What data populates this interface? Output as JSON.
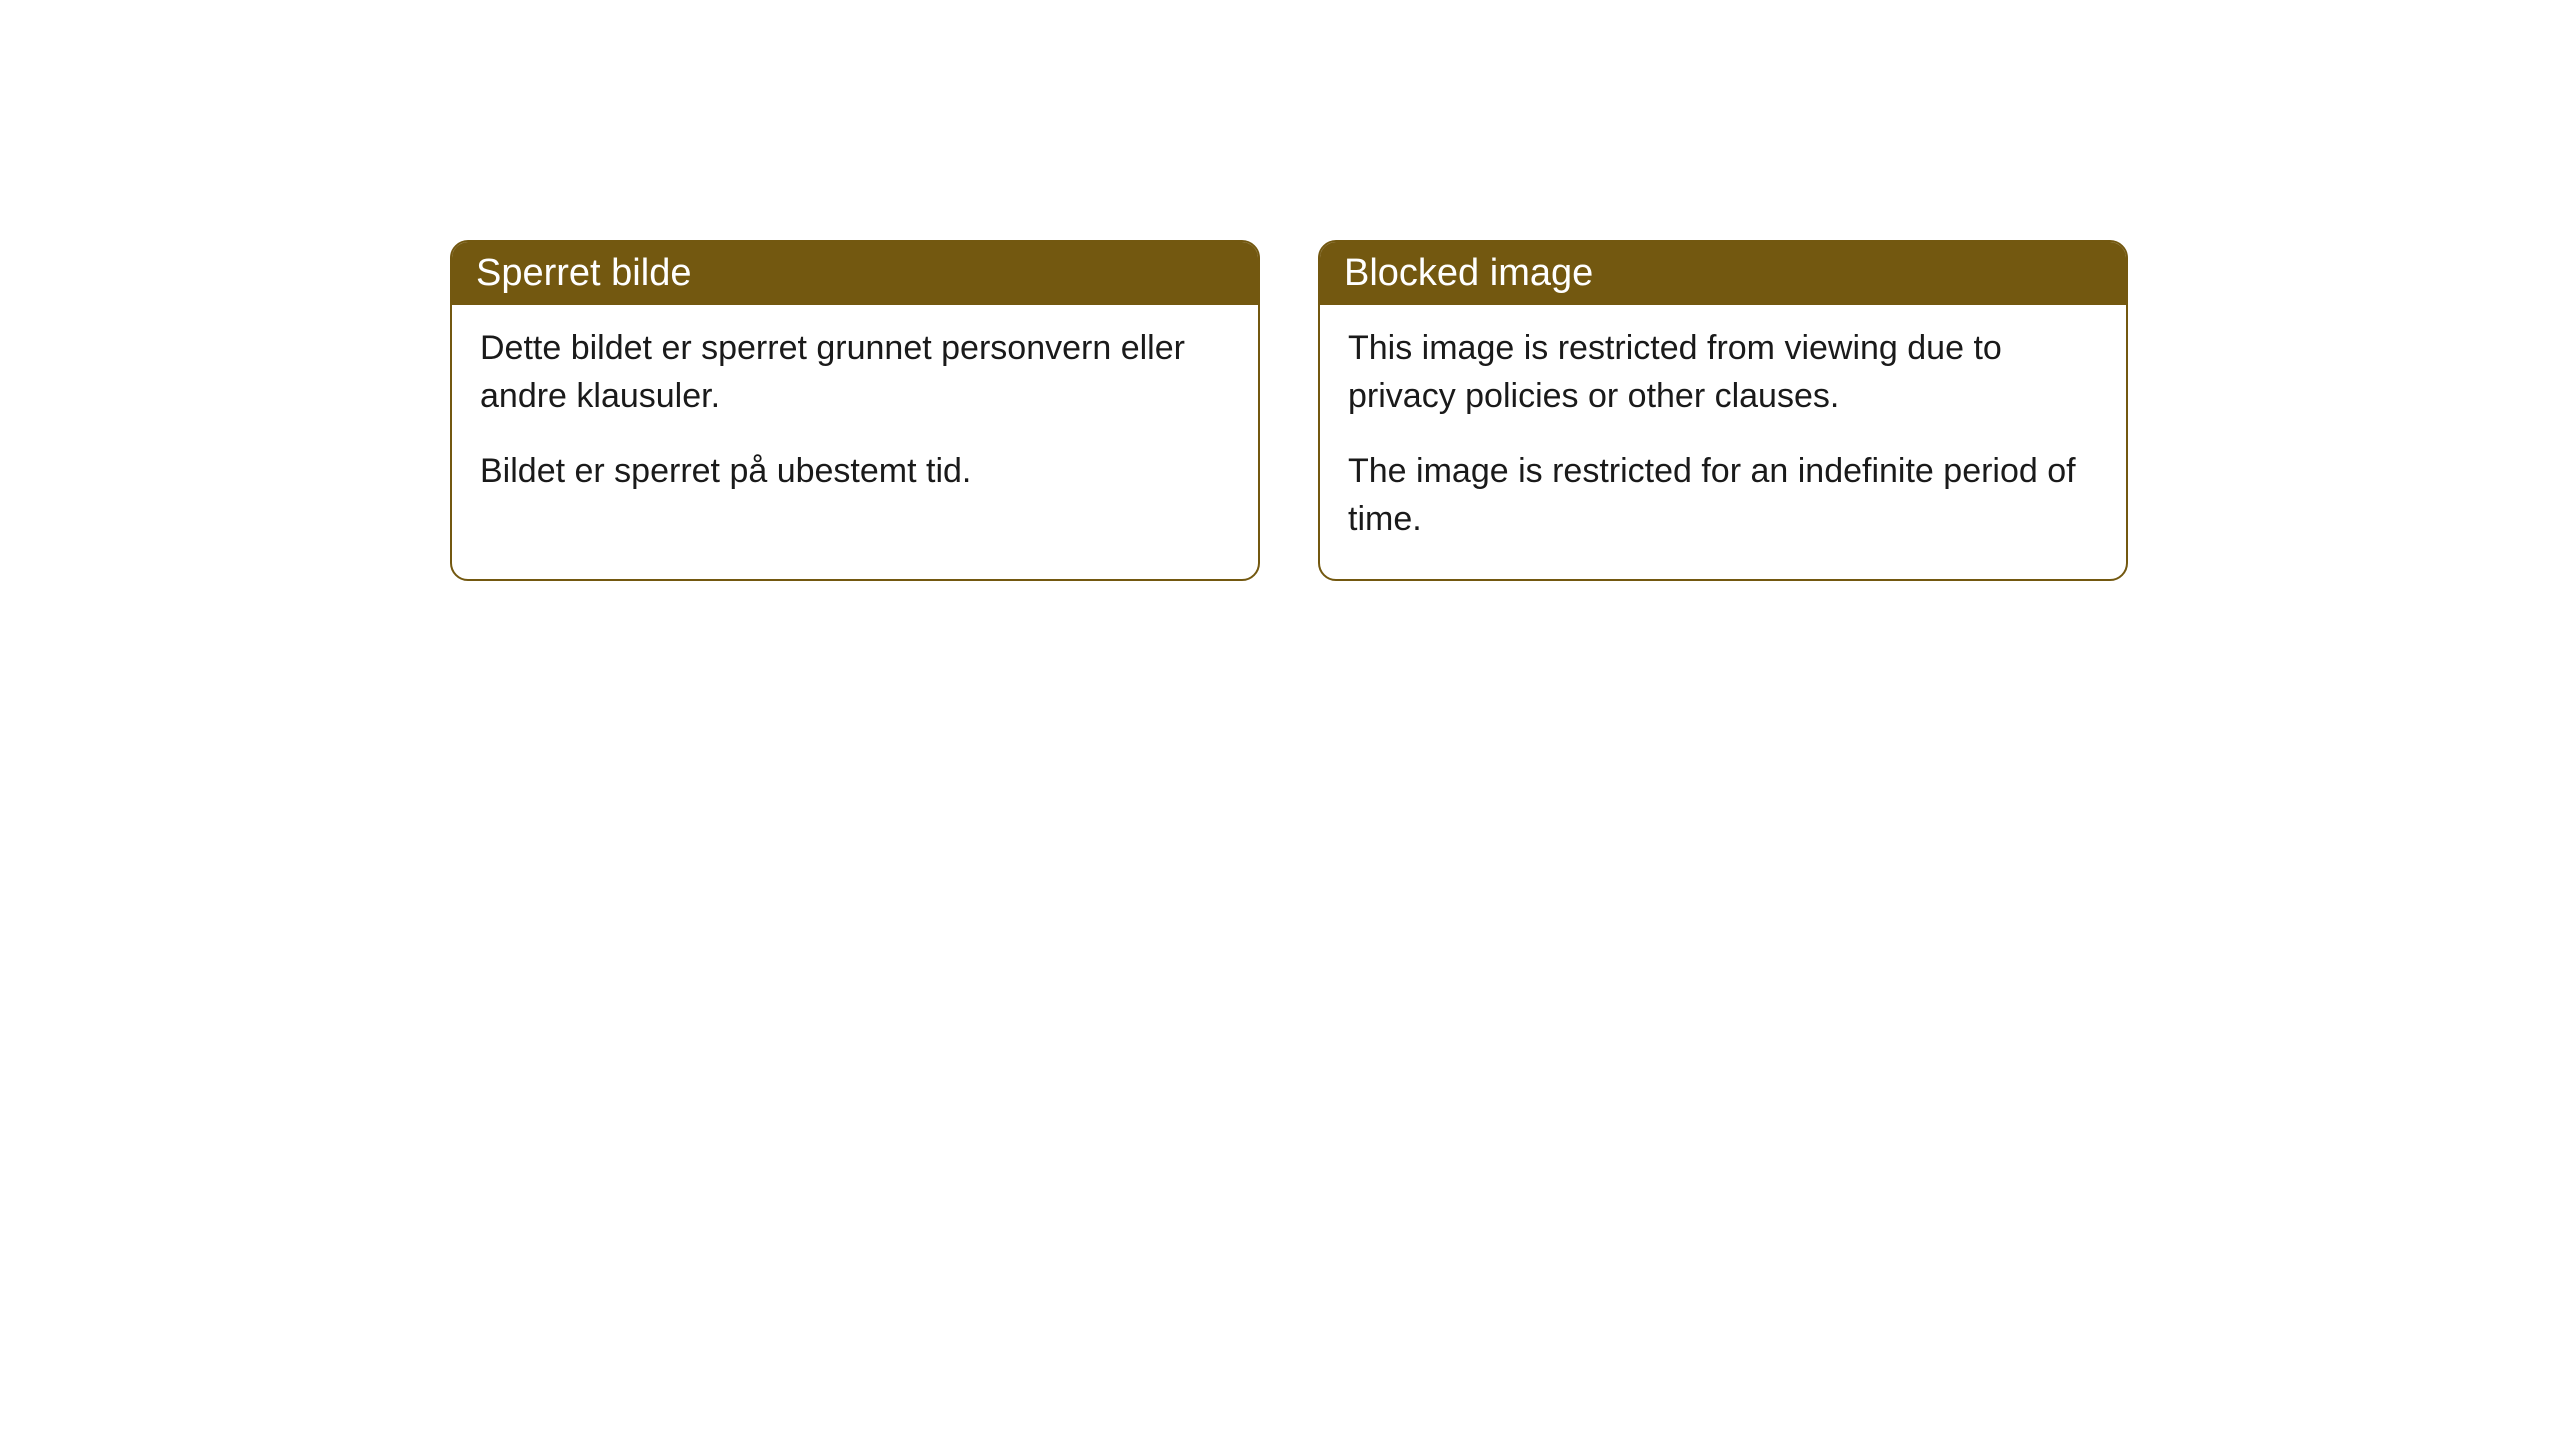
{
  "cards": [
    {
      "title": "Sperret bilde",
      "paragraph1": "Dette bildet er sperret grunnet personvern eller andre klausuler.",
      "paragraph2": "Bildet er sperret på ubestemt tid."
    },
    {
      "title": "Blocked image",
      "paragraph1": "This image is restricted from viewing due to privacy policies or other clauses.",
      "paragraph2": "The image is restricted for an indefinite period of time."
    }
  ],
  "styling": {
    "header_background": "#735810",
    "header_text_color": "#ffffff",
    "border_color": "#735810",
    "body_background": "#ffffff",
    "body_text_color": "#1a1a1a",
    "border_radius": 18,
    "header_fontsize": 38,
    "body_fontsize": 34
  }
}
